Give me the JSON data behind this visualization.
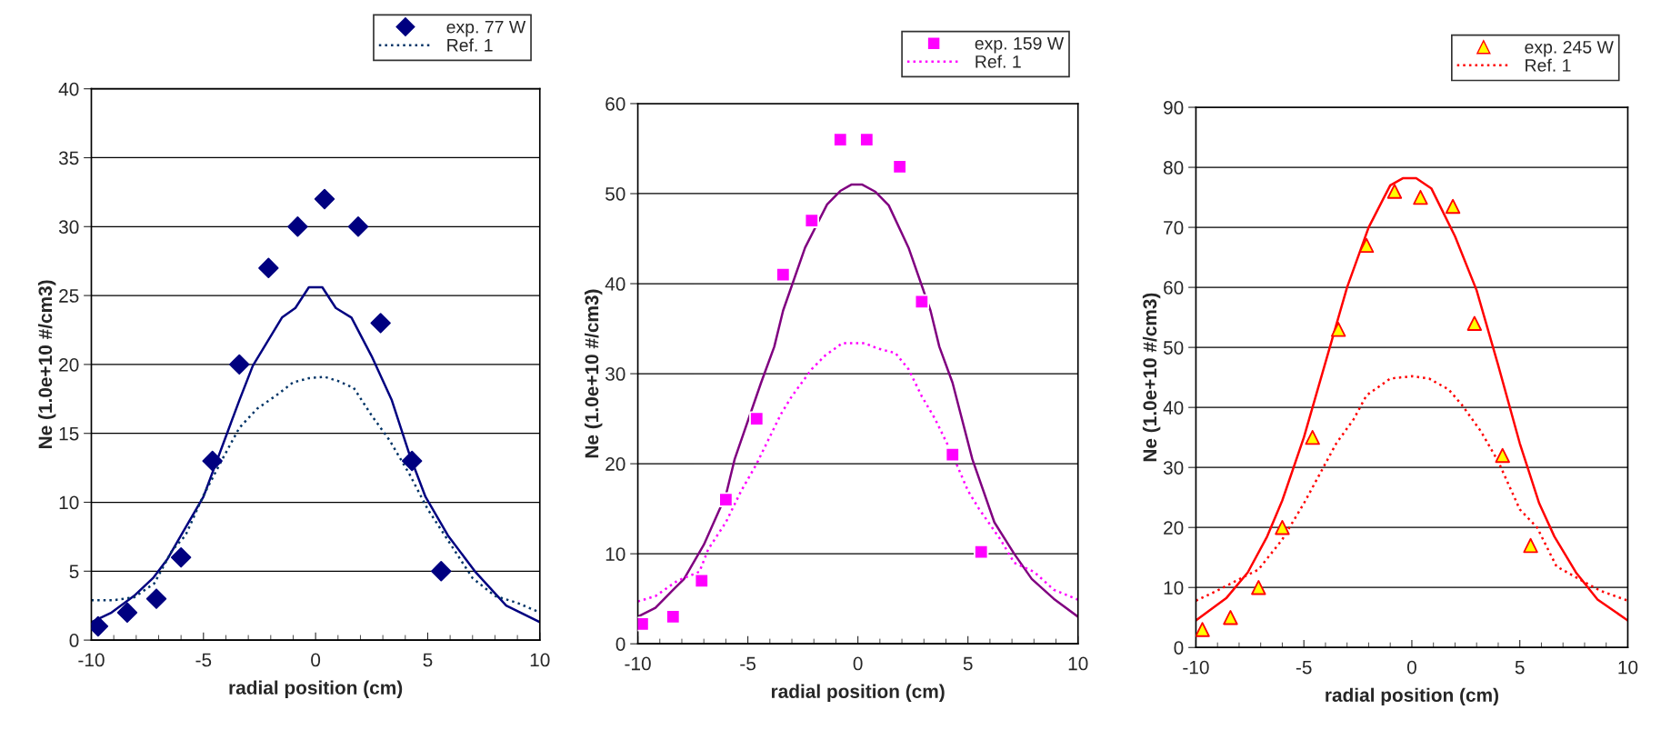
{
  "chart_data": [
    {
      "type": "line",
      "xlabel": "radial position (cm)",
      "ylabel": "Ne (1.0e+10 #/cm3)",
      "xlim": [
        -10,
        10
      ],
      "xticks": [
        -10,
        -5,
        0,
        5,
        10
      ],
      "ylim": [
        0,
        40
      ],
      "yticks": [
        0,
        5,
        10,
        15,
        20,
        25,
        30,
        35,
        40
      ],
      "grid": "y",
      "legend": "top right",
      "series": [
        {
          "type": "scatter",
          "name": "exp. 77 W",
          "color": "#000080",
          "marker": "diamond",
          "x": [
            -9.7,
            -8.4,
            -7.1,
            -6.0,
            -4.6,
            -3.4,
            -2.1,
            -0.8,
            0.4,
            1.9,
            2.9,
            4.3,
            5.6
          ],
          "values": [
            1,
            2,
            3,
            6,
            13,
            20,
            27,
            30,
            32,
            30,
            23,
            13,
            5
          ]
        },
        {
          "color": "#000080",
          "line_style": "solid",
          "x": [
            -10,
            -9.1,
            -8.1,
            -7.25,
            -6.6,
            -6,
            -5,
            -3.4,
            -2.8,
            -1.5,
            -0.9,
            -0.3,
            0.3,
            0.9,
            1.6,
            2.5,
            3.4,
            4.2,
            4.9,
            5.9,
            7.1,
            8.5,
            10
          ],
          "values": [
            1.3,
            2,
            3.2,
            4.5,
            5.9,
            7.6,
            10.4,
            17.4,
            19.9,
            23.4,
            24.1,
            25.6,
            25.6,
            24.1,
            23.4,
            20.6,
            17.4,
            13.4,
            10.4,
            7.6,
            5,
            2.5,
            1.3
          ]
        },
        {
          "name": "Ref. 1",
          "color": "#003366",
          "line_style": "dotted",
          "x": [
            -10,
            -9,
            -8.1,
            -7.2,
            -6.4,
            -5.8,
            -5,
            -4.2,
            -3.4,
            -2.6,
            -1.8,
            -1,
            -0.3,
            0.4,
            1,
            1.7,
            2.5,
            3.3,
            4.2,
            5,
            6,
            7,
            8,
            9,
            10
          ],
          "values": [
            2.9,
            2.9,
            3.1,
            4.1,
            6.5,
            7.6,
            10.5,
            13,
            15.4,
            16.8,
            17.7,
            18.7,
            19,
            19.1,
            18.8,
            18.3,
            16.3,
            14.5,
            12,
            9.5,
            7,
            4.5,
            3.2,
            2.7,
            2
          ]
        }
      ]
    },
    {
      "type": "line",
      "xlabel": "radial position (cm)",
      "ylabel": "Ne (1.0e+10 #/cm3)",
      "xlim": [
        -10,
        10
      ],
      "xticks": [
        -10,
        -5,
        0,
        5,
        10
      ],
      "ylim": [
        0,
        60
      ],
      "yticks": [
        0,
        10,
        20,
        30,
        40,
        50,
        60
      ],
      "grid": "y",
      "legend": "top right",
      "series": [
        {
          "type": "scatter",
          "name": "exp. 159 W",
          "color": "#ff00ff",
          "marker": "square",
          "x": [
            -9.8,
            -8.4,
            -7.1,
            -6.0,
            -4.6,
            -3.4,
            -2.1,
            -0.8,
            0.4,
            1.9,
            2.9,
            4.3,
            5.6
          ],
          "values": [
            2.2,
            3,
            7,
            16,
            25,
            41,
            47,
            56,
            56,
            53,
            38,
            21,
            10.2
          ]
        },
        {
          "color": "#800080",
          "line_style": "solid",
          "x": [
            -10,
            -9.2,
            -8.4,
            -7.9,
            -7,
            -6,
            -5.6,
            -4.4,
            -3.8,
            -3.4,
            -2.4,
            -1.4,
            -0.8,
            -0.3,
            0.2,
            0.8,
            1.4,
            2.3,
            3.3,
            3.7,
            4.3,
            5.2,
            6.2,
            7.1,
            7.9,
            8.9,
            10
          ],
          "values": [
            3,
            4,
            6,
            7.2,
            11,
            16.5,
            20.5,
            29,
            33,
            37,
            44,
            48.8,
            50.3,
            51,
            51,
            50.2,
            48.7,
            44,
            37,
            33,
            29,
            20.5,
            13.5,
            10,
            7.2,
            5,
            3
          ]
        },
        {
          "name": "Ref. 1",
          "color": "#ff00ff",
          "line_style": "dotted",
          "x": [
            -10,
            -9.2,
            -8.2,
            -7.2,
            -6.8,
            -6,
            -5.3,
            -4.6,
            -3.5,
            -3,
            -2.1,
            -1.5,
            -0.7,
            0.3,
            0.9,
            1.7,
            2.3,
            2.9,
            3.5,
            4.3,
            5,
            5.5,
            6.5,
            7.1,
            8,
            8.9,
            10
          ],
          "values": [
            4.7,
            5.3,
            7,
            8,
            10.5,
            13.5,
            17,
            20,
            25.5,
            27.5,
            30.5,
            32,
            33.4,
            33.4,
            32.8,
            32.3,
            30.5,
            27.5,
            25,
            21,
            17,
            15,
            11.5,
            9,
            8,
            6,
            4.9
          ]
        }
      ]
    },
    {
      "type": "line",
      "xlabel": "radial position (cm)",
      "ylabel": "Ne (1.0e+10 #/cm3)",
      "xlim": [
        -10,
        10
      ],
      "xticks": [
        -10,
        -5,
        0,
        5,
        10
      ],
      "ylim": [
        0,
        90
      ],
      "yticks": [
        0,
        10,
        20,
        30,
        40,
        50,
        60,
        70,
        80,
        90
      ],
      "grid": "y",
      "legend": "top right",
      "series": [
        {
          "type": "scatter",
          "name": "exp. 245 W",
          "color": "#ffff00",
          "marker": "triangle",
          "x": [
            -9.7,
            -8.4,
            -7.1,
            -6.0,
            -4.6,
            -3.4,
            -2.1,
            -0.8,
            0.4,
            1.9,
            2.9,
            4.2,
            5.5
          ],
          "values": [
            3,
            5,
            10,
            20,
            35,
            53,
            67,
            76,
            75,
            73.5,
            54,
            32,
            17
          ]
        },
        {
          "color": "#ff0000",
          "line_style": "solid",
          "x": [
            -10,
            -8.6,
            -7.6,
            -6.7,
            -6,
            -5,
            -4,
            -3,
            -2,
            -1,
            -0.4,
            0.2,
            0.9,
            2,
            3,
            4,
            5,
            5.9,
            6.6,
            7.6,
            8.6,
            10
          ],
          "values": [
            4.5,
            8.2,
            12.5,
            18.5,
            24.5,
            35,
            47.5,
            60,
            70,
            77,
            78.2,
            78.2,
            76.5,
            68.5,
            59.5,
            47,
            34,
            24,
            18.5,
            12.5,
            8,
            4.5
          ]
        },
        {
          "name": "Ref. 1",
          "color": "#ff0000",
          "line_style": "dotted",
          "x": [
            -10,
            -9,
            -8.2,
            -7.1,
            -6,
            -5,
            -4.4,
            -3.5,
            -2.7,
            -2.1,
            -1,
            0,
            0.8,
            1.7,
            2.3,
            3.2,
            4,
            5,
            5.8,
            6.7,
            7.7,
            8.7,
            10
          ],
          "values": [
            7.8,
            9.5,
            11,
            13,
            18,
            24,
            28,
            34,
            38,
            42,
            44.8,
            45.2,
            44.8,
            43,
            40.5,
            36,
            31,
            23,
            20,
            13.5,
            11.5,
            9.5,
            7.8
          ]
        }
      ]
    }
  ]
}
